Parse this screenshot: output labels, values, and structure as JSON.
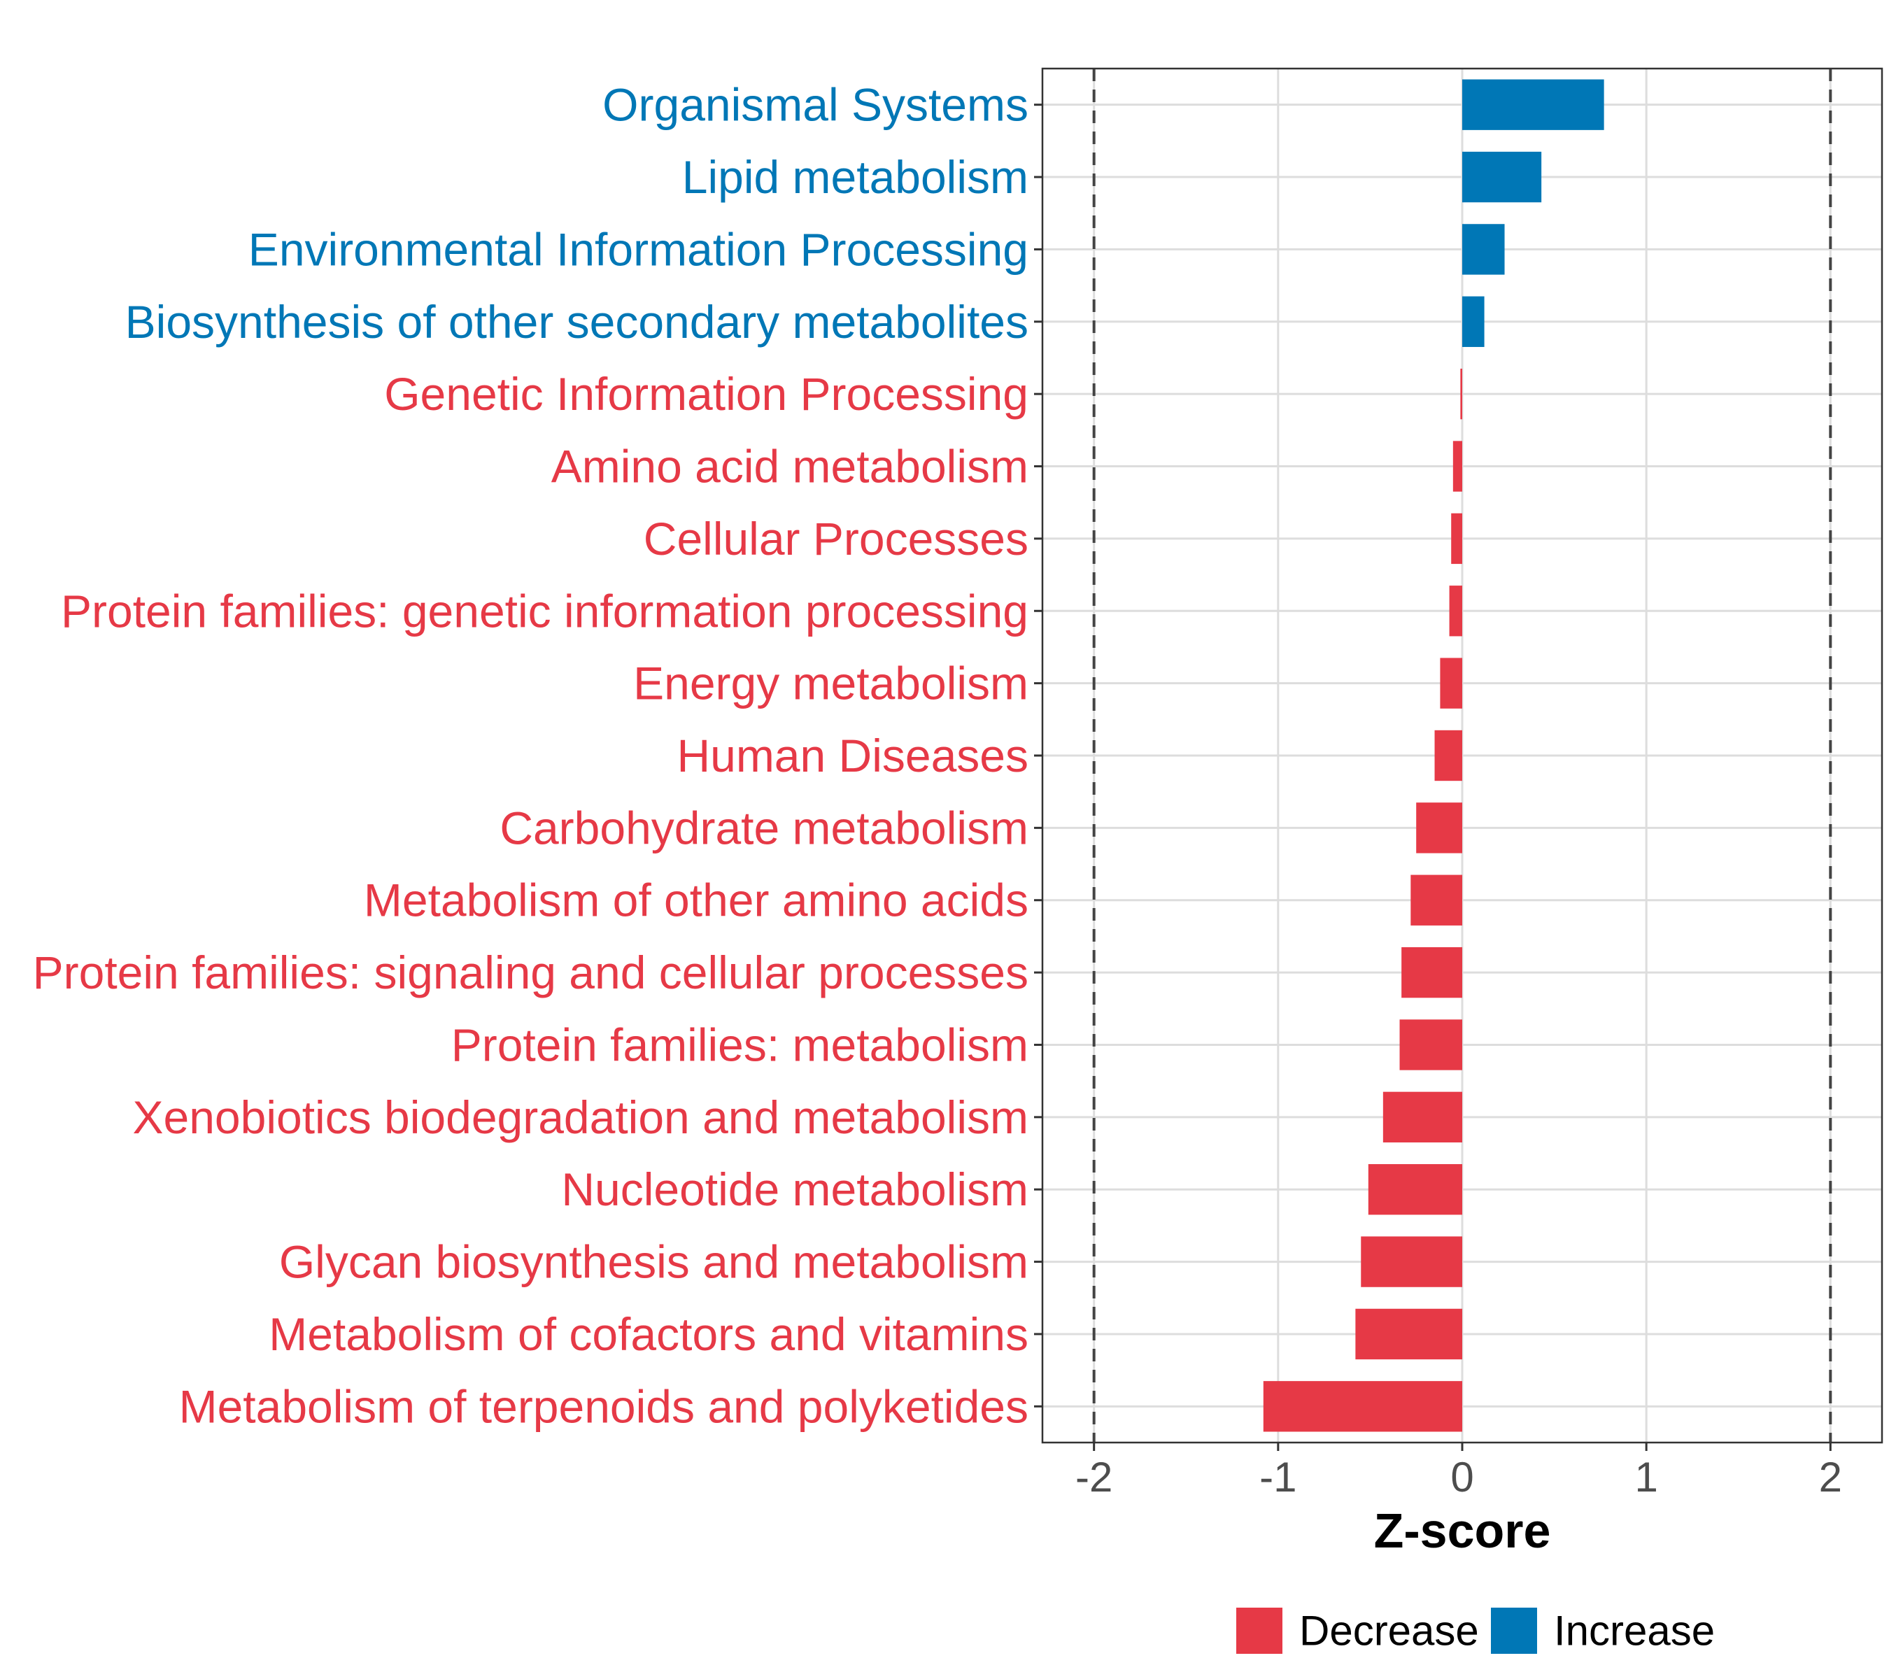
{
  "chart_data": {
    "type": "bar",
    "orientation": "horizontal",
    "title": "",
    "xlabel": "Z-score",
    "ylabel": "",
    "xlim": [
      -2.28,
      2.28
    ],
    "xticks": [
      -2,
      -1,
      0,
      1,
      2
    ],
    "xtick_labels": [
      "-2",
      "-1",
      "0",
      "1",
      "2"
    ],
    "reference_lines": [
      -2,
      2
    ],
    "grid": true,
    "legend_position": "bottom",
    "colors": {
      "Decrease": "#E63946",
      "Increase": "#0077B6"
    },
    "legend": [
      {
        "label": "Decrease",
        "color": "#E63946"
      },
      {
        "label": "Increase",
        "color": "#0077B6"
      }
    ],
    "categories": [
      "Organismal Systems",
      "Lipid metabolism",
      "Environmental Information Processing",
      "Biosynthesis of other secondary metabolites",
      "Genetic Information Processing",
      "Amino acid metabolism",
      "Cellular Processes",
      "Protein families: genetic information processing",
      "Energy metabolism",
      "Human Diseases",
      "Carbohydrate metabolism",
      "Metabolism of other amino acids",
      "Protein families: signaling and cellular processes",
      "Protein families: metabolism",
      "Xenobiotics biodegradation and metabolism",
      "Nucleotide metabolism",
      "Glycan biosynthesis and metabolism",
      "Metabolism of cofactors and vitamins",
      "Metabolism of terpenoids and polyketides"
    ],
    "values": [
      0.77,
      0.43,
      0.23,
      0.12,
      -0.01,
      -0.05,
      -0.06,
      -0.07,
      -0.12,
      -0.15,
      -0.25,
      -0.28,
      -0.33,
      -0.34,
      -0.43,
      -0.51,
      -0.55,
      -0.58,
      -1.08
    ],
    "groups": [
      "Increase",
      "Increase",
      "Increase",
      "Increase",
      "Decrease",
      "Decrease",
      "Decrease",
      "Decrease",
      "Decrease",
      "Decrease",
      "Decrease",
      "Decrease",
      "Decrease",
      "Decrease",
      "Decrease",
      "Decrease",
      "Decrease",
      "Decrease",
      "Decrease"
    ]
  }
}
